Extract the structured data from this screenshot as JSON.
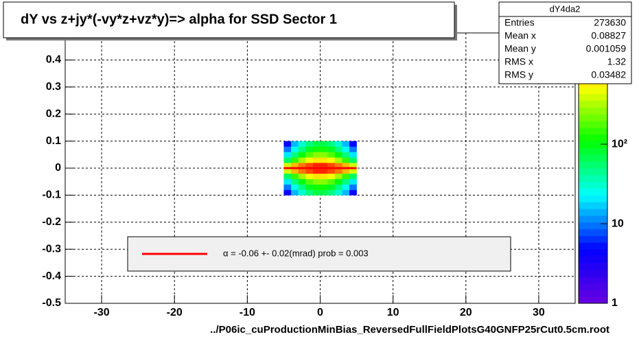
{
  "chart_data": {
    "type": "heatmap",
    "title": "dY vs  z+jy*(-vy*z+vz*y)=> alpha for SSD Sector 1",
    "x_label": "../P06ic_cuProductionMinBias_ReversedFullFieldPlotsG40GNFP25rCut0.5cm.root",
    "xlim": [
      -35,
      35
    ],
    "xticks": [
      -30,
      -20,
      -10,
      0,
      10,
      20,
      30
    ],
    "ylim": [
      -0.5,
      0.5
    ],
    "yticks": [
      -0.5,
      -0.4,
      -0.3,
      -0.2,
      -0.1,
      0,
      0.1,
      0.2,
      0.3,
      0.4
    ],
    "zlim": [
      1,
      2500
    ],
    "zticks": [
      1,
      10,
      {
        "value": 100,
        "label": "10²"
      }
    ],
    "log_z": true,
    "grid": true,
    "palette": [
      "#6a00e0",
      "#0000ff",
      "#00ffff",
      "#00ff00",
      "#ffff00",
      "#ff0000"
    ],
    "xbins": [
      -5,
      -4,
      -3,
      -2,
      -1,
      0,
      1,
      2,
      3,
      4,
      5
    ],
    "ybins": [
      -0.1,
      -0.08,
      -0.06,
      -0.04,
      -0.02,
      0,
      0.02,
      0.04,
      0.06,
      0.08,
      0.1
    ],
    "z": [
      [
        5,
        15,
        30,
        50,
        70,
        70,
        50,
        30,
        15,
        5
      ],
      [
        10,
        25,
        50,
        90,
        120,
        120,
        90,
        50,
        25,
        10
      ],
      [
        20,
        50,
        100,
        180,
        250,
        250,
        180,
        100,
        50,
        20
      ],
      [
        60,
        150,
        300,
        500,
        600,
        600,
        500,
        300,
        150,
        60
      ],
      [
        400,
        800,
        1200,
        1600,
        2000,
        2000,
        1600,
        1200,
        800,
        400
      ],
      [
        400,
        800,
        1200,
        1600,
        2000,
        2000,
        1600,
        1200,
        800,
        400
      ],
      [
        60,
        150,
        300,
        500,
        600,
        600,
        500,
        300,
        150,
        60
      ],
      [
        20,
        50,
        100,
        180,
        250,
        250,
        180,
        100,
        50,
        20
      ],
      [
        10,
        25,
        50,
        90,
        120,
        120,
        90,
        50,
        25,
        10
      ],
      [
        5,
        15,
        30,
        50,
        70,
        70,
        50,
        30,
        15,
        5
      ]
    ],
    "legend": {
      "color": "#ff0000",
      "text": "α =    -0.06 +-     0.02(mrad) prob = 0.003"
    },
    "stats": {
      "name": "dY4da2",
      "rows": [
        {
          "label": "Entries",
          "value": 273630
        },
        {
          "label": "Mean x",
          "value": 0.08827
        },
        {
          "label": "Mean y",
          "value": 0.001059
        },
        {
          "label": "RMS x",
          "value": 1.32
        },
        {
          "label": "RMS y",
          "value": 0.03482
        }
      ]
    }
  }
}
